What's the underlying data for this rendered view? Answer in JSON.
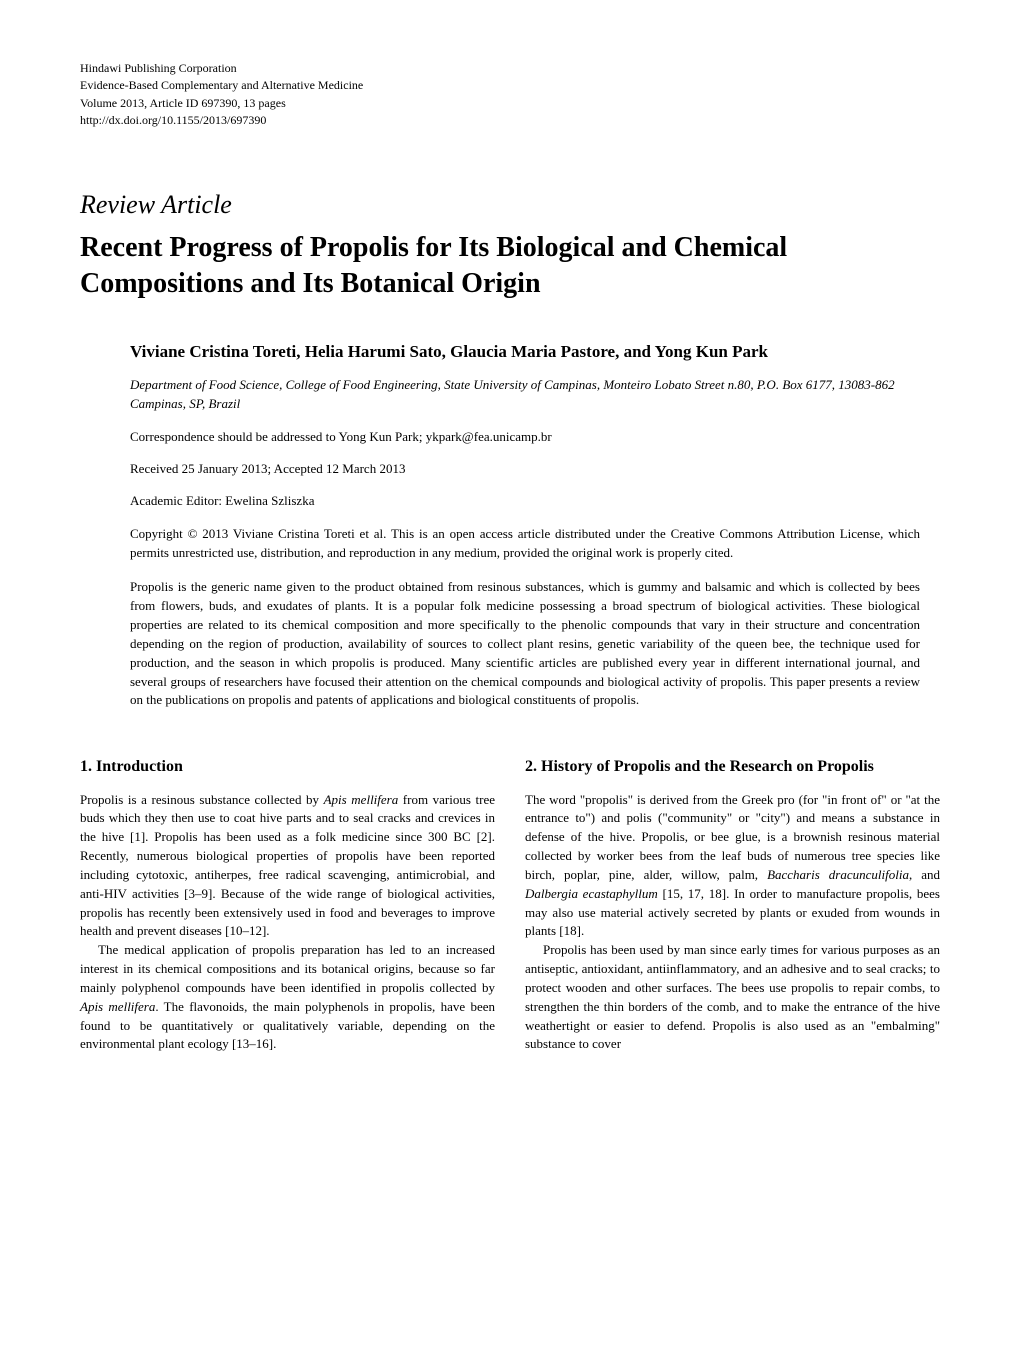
{
  "publisher": {
    "corporation": "Hindawi Publishing Corporation",
    "journal": "Evidence-Based Complementary and Alternative Medicine",
    "volume": "Volume 2013, Article ID 697390, 13 pages",
    "doi": "http://dx.doi.org/10.1155/2013/697390"
  },
  "article_type": "Review Article",
  "title": "Recent Progress of Propolis for Its Biological and Chemical Compositions and Its Botanical Origin",
  "authors": "Viviane Cristina Toreti, Helia Harumi Sato, Glaucia Maria Pastore, and Yong Kun Park",
  "affiliation": "Department of Food Science, College of Food Engineering, State University of Campinas, Monteiro Lobato Street n.80, P.O. Box 6177, 13083-862 Campinas, SP, Brazil",
  "correspondence": "Correspondence should be addressed to Yong Kun Park; ykpark@fea.unicamp.br",
  "dates": "Received 25 January 2013; Accepted 12 March 2013",
  "editor": "Academic Editor: Ewelina Szliszka",
  "copyright": "Copyright © 2013 Viviane Cristina Toreti et al. This is an open access article distributed under the Creative Commons Attribution License, which permits unrestricted use, distribution, and reproduction in any medium, provided the original work is properly cited.",
  "abstract": "Propolis is the generic name given to the product obtained from resinous substances, which is gummy and balsamic and which is collected by bees from flowers, buds, and exudates of plants. It is a popular folk medicine possessing a broad spectrum of biological activities. These biological properties are related to its chemical composition and more specifically to the phenolic compounds that vary in their structure and concentration depending on the region of production, availability of sources to collect plant resins, genetic variability of the queen bee, the technique used for production, and the season in which propolis is produced. Many scientific articles are published every year in different international journal, and several groups of researchers have focused their attention on the chemical compounds and biological activity of propolis. This paper presents a review on the publications on propolis and patents of applications and biological constituents of propolis.",
  "section1": {
    "heading": "1. Introduction",
    "p1_pre": "Propolis is a resinous substance collected by ",
    "p1_species": "Apis mellifera",
    "p1_post": " from various tree buds which they then use to coat hive parts and to seal cracks and crevices in the hive [1]. Propolis has been used as a folk medicine since 300 BC [2]. Recently, numerous biological properties of propolis have been reported including cytotoxic, antiherpes, free radical scavenging, antimicrobial, and anti-HIV activities [3–9]. Because of the wide range of biological activities, propolis has recently been extensively used in food and beverages to improve health and prevent diseases [10–12].",
    "p2_pre": "The medical application of propolis preparation has led to an increased interest in its chemical compositions and its botanical origins, because so far mainly polyphenol compounds have been identified in propolis collected by ",
    "p2_species": "Apis mellifera",
    "p2_post": ". The flavonoids, the main polyphenols in propolis, have been found to be quantitatively or qualitatively variable, depending on the environmental plant ecology [13–16]."
  },
  "section2": {
    "heading": "2. History of Propolis and the Research on Propolis",
    "p1_pre": "The word \"propolis\" is derived from the Greek pro (for \"in front of\" or \"at the entrance to\") and polis (\"community\" or \"city\") and means a substance in defense of the hive. Propolis, or bee glue, is a brownish resinous material collected by worker bees from the leaf buds of numerous tree species like birch, poplar, pine, alder, willow, palm, ",
    "p1_species1": "Baccharis dracunculifolia",
    "p1_mid": ", and ",
    "p1_species2": "Dalbergia ecastaphyllum",
    "p1_post": " [15, 17, 18]. In order to manufacture propolis, bees may also use material actively secreted by plants or exuded from wounds in plants [18].",
    "p2": "Propolis has been used by man since early times for various purposes as an antiseptic, antioxidant, antiinflammatory, and an adhesive and to seal cracks; to protect wooden and other surfaces. The bees use propolis to repair combs, to strengthen the thin borders of the comb, and to make the entrance of the hive weathertight or easier to defend. Propolis is also used as an \"embalming\" substance to cover"
  }
}
